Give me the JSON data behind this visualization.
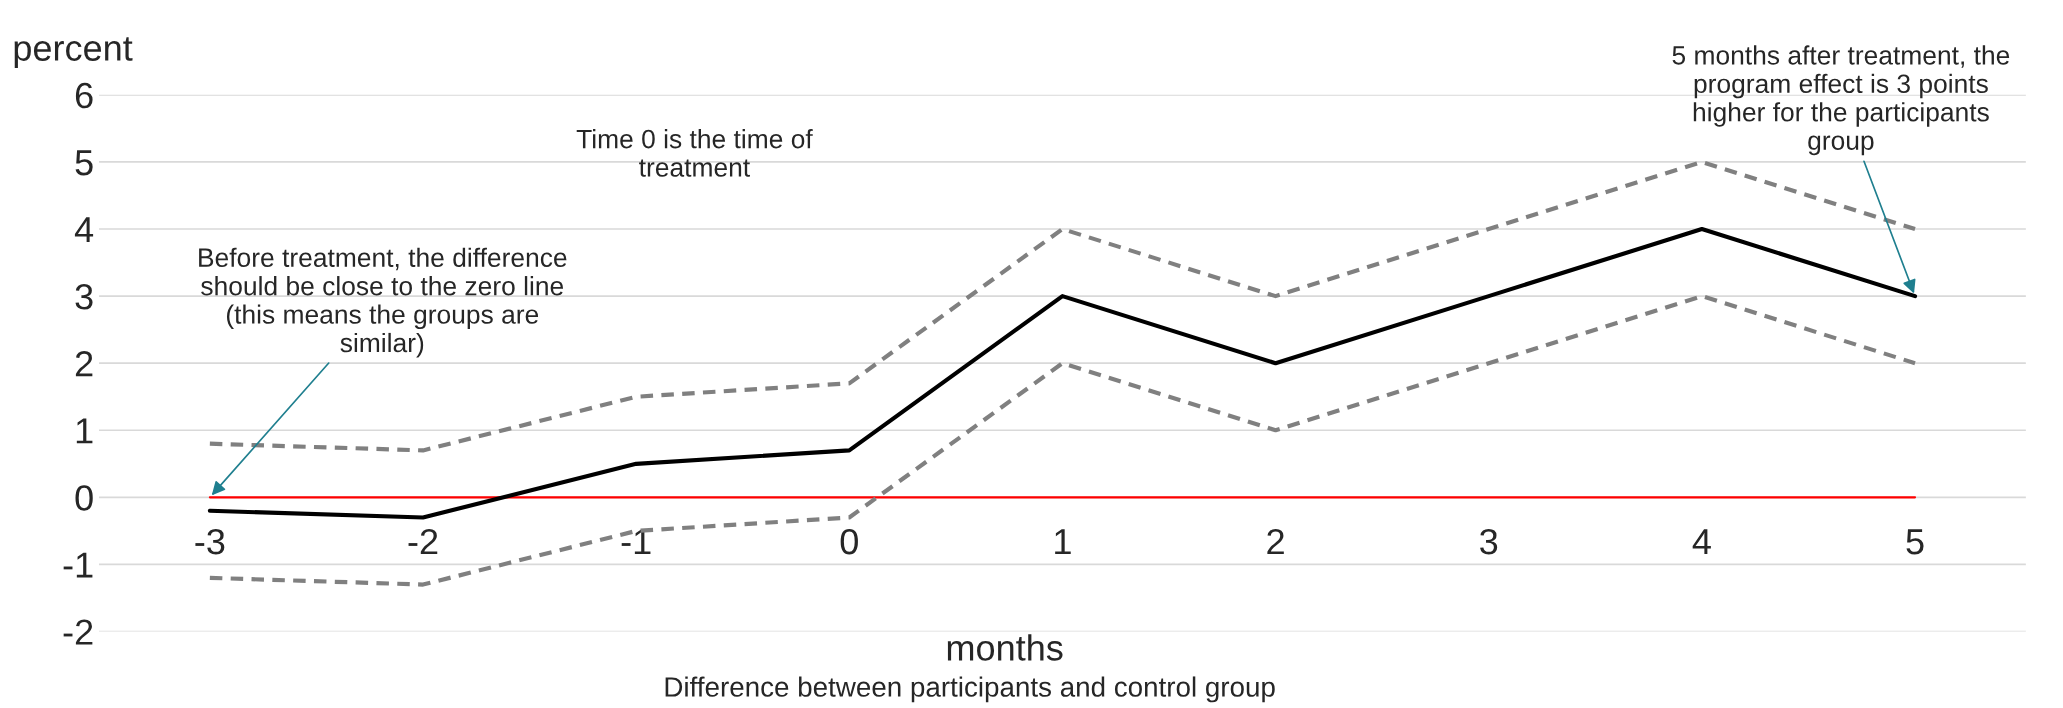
{
  "chart_data": {
    "type": "line",
    "title": "Difference between participants and control group",
    "xlabel": "months",
    "ylabel": "percent",
    "categories": [
      "-3",
      "-2",
      "-1",
      "0",
      "1",
      "2",
      "3",
      "4",
      "5"
    ],
    "series": [
      {
        "color": "#ff0000",
        "line_style": "solid",
        "values": [
          0,
          0,
          0,
          0,
          0,
          0,
          0,
          0,
          0
        ]
      },
      {
        "color": "#808080",
        "line_style": "dashed",
        "values": [
          0.8,
          0.7,
          1.5,
          1.7,
          4,
          3,
          4,
          5,
          4
        ]
      },
      {
        "color": "#808080",
        "line_style": "dashed",
        "values": [
          -1.2,
          -1.3,
          -0.5,
          -0.3,
          2,
          1,
          2,
          3,
          2
        ]
      },
      {
        "color": "#000000",
        "line_style": "solid",
        "values": [
          -0.2,
          -0.3,
          0.5,
          0.7,
          3,
          2,
          3,
          4,
          3
        ]
      }
    ],
    "ylim": [
      -2,
      6
    ],
    "yticks": [
      -2,
      -1,
      0,
      1,
      2,
      3,
      4,
      5,
      6
    ],
    "grid": "y",
    "legend": false,
    "marker": "none",
    "annotations": [
      "Time 0 is the time of treatment",
      {
        "text": "Before treatment, the difference should be close to the zero line (this means the groups are similar)",
        "x": "-3",
        "y": 0
      },
      {
        "text": "5 months after treatment, the program effect is 3 points higher for the participants group",
        "x": "5",
        "y": 3
      }
    ]
  }
}
